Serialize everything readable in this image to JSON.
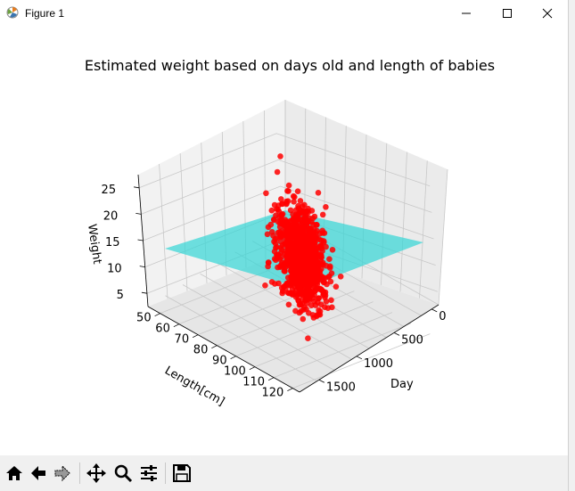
{
  "window": {
    "title": "Figure 1",
    "controls": [
      "minimize-icon",
      "maximize-icon",
      "close-icon"
    ]
  },
  "chart_data": {
    "type": "scatter",
    "title": "Estimated weight based on days old and length of babies",
    "xlabel": "Day",
    "ylabel": "Length[cm]",
    "zlabel": "Weight",
    "x_ticks": [
      "0",
      "500",
      "1000",
      "1500"
    ],
    "y_ticks": [
      "50",
      "60",
      "70",
      "80",
      "90",
      "100",
      "110",
      "120"
    ],
    "z_ticks": [
      "5",
      "10",
      "15",
      "20",
      "25"
    ],
    "xlim": [
      0,
      1800
    ],
    "ylim": [
      45,
      125
    ],
    "zlim": [
      2,
      27
    ],
    "surface": {
      "description": "regression plane",
      "color": "#00c8c8"
    },
    "points": {
      "color": "#ff0000",
      "count_estimate": 1000,
      "day_range": [
        0,
        1100
      ],
      "length_range": [
        45,
        110
      ],
      "weight_range": [
        3,
        22
      ]
    }
  },
  "toolbar": {
    "buttons": [
      {
        "name": "home-icon"
      },
      {
        "name": "back-icon"
      },
      {
        "name": "forward-icon"
      },
      {
        "name": "pan-icon"
      },
      {
        "name": "zoom-icon"
      },
      {
        "name": "configure-subplots-icon"
      },
      {
        "name": "save-icon"
      }
    ]
  }
}
